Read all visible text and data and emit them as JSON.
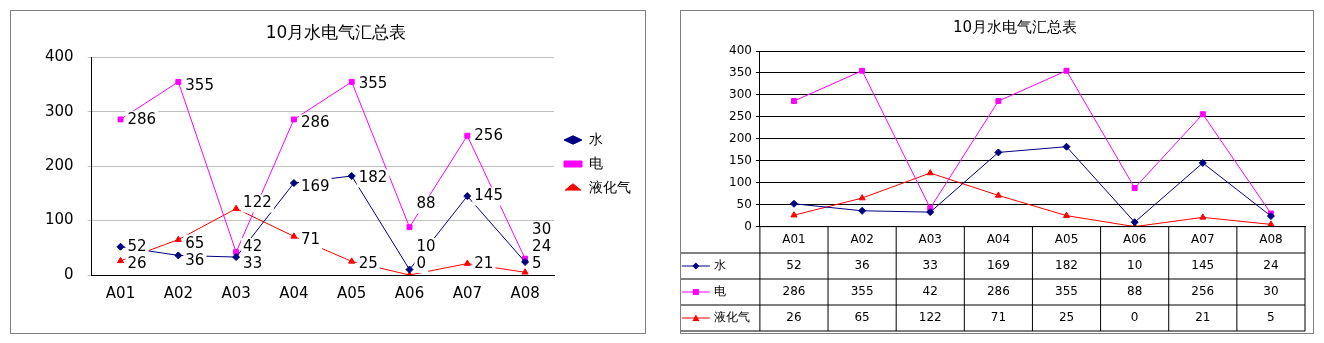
{
  "chart_data": [
    {
      "type": "line",
      "title": "10月水电气汇总表",
      "categories": [
        "A01",
        "A02",
        "A03",
        "A04",
        "A05",
        "A06",
        "A07",
        "A08"
      ],
      "series": [
        {
          "name": "水",
          "color": "#000080",
          "marker": "diamond",
          "values": [
            52,
            36,
            33,
            169,
            182,
            10,
            145,
            24
          ]
        },
        {
          "name": "电",
          "color": "#ff00ff",
          "marker": "square",
          "values": [
            286,
            355,
            42,
            286,
            355,
            88,
            256,
            30
          ]
        },
        {
          "name": "液化气",
          "color": "#ff0000",
          "marker": "triangle",
          "values": [
            26,
            65,
            122,
            71,
            25,
            0,
            21,
            5
          ]
        }
      ],
      "ylim": [
        0,
        400
      ],
      "yticks": [
        0,
        100,
        200,
        300,
        400
      ],
      "grid": "y",
      "legend": "right",
      "data_labels": true
    },
    {
      "type": "line",
      "title": "10月水电气汇总表",
      "categories": [
        "A01",
        "A02",
        "A03",
        "A04",
        "A05",
        "A06",
        "A07",
        "A08"
      ],
      "series": [
        {
          "name": "水",
          "color": "#000080",
          "marker": "diamond",
          "values": [
            52,
            36,
            33,
            169,
            182,
            10,
            145,
            24
          ]
        },
        {
          "name": "电",
          "color": "#ff00ff",
          "marker": "square",
          "values": [
            286,
            355,
            42,
            286,
            355,
            88,
            256,
            30
          ]
        },
        {
          "name": "液化气",
          "color": "#ff0000",
          "marker": "triangle",
          "values": [
            26,
            65,
            122,
            71,
            25,
            0,
            21,
            5
          ]
        }
      ],
      "ylim": [
        0,
        400
      ],
      "yticks": [
        0,
        50,
        100,
        150,
        200,
        250,
        300,
        350,
        400
      ],
      "grid": "y",
      "legend": "bottom",
      "data_labels": true
    }
  ]
}
